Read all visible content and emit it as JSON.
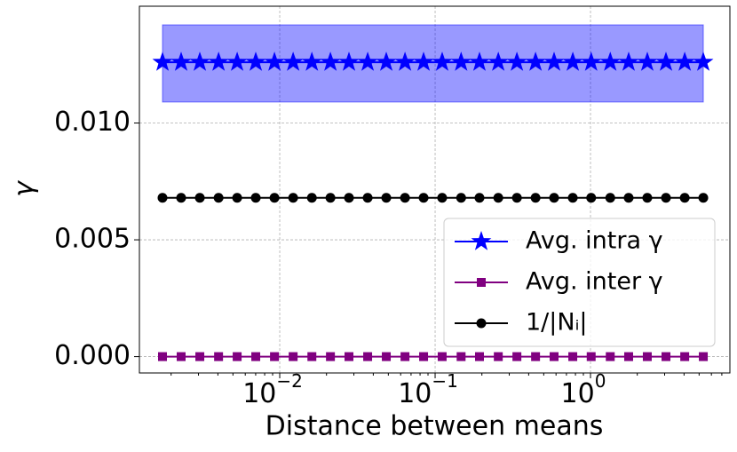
{
  "chart_data": {
    "type": "line",
    "xlabel": "Distance between means",
    "ylabel": "γ",
    "x": [
      0.00176,
      0.00232,
      0.00306,
      0.00404,
      0.00532,
      0.00701,
      0.00925,
      0.0122,
      0.0161,
      0.0212,
      0.0279,
      0.0368,
      0.0485,
      0.064,
      0.0843,
      0.111,
      0.147,
      0.193,
      0.255,
      0.336,
      0.443,
      0.583,
      0.769,
      1.01,
      1.34,
      1.76,
      2.32,
      3.06,
      4.04,
      5.32
    ],
    "series": [
      {
        "name": "Avg. intra γ",
        "color": "#0000ff",
        "marker": "star",
        "band_color": "#0000ff",
        "values": [
          0.0126,
          0.0126,
          0.0126,
          0.0126,
          0.0126,
          0.0126,
          0.0126,
          0.0126,
          0.0126,
          0.0126,
          0.0126,
          0.0126,
          0.0126,
          0.0126,
          0.0126,
          0.0126,
          0.0126,
          0.0126,
          0.0126,
          0.0126,
          0.0126,
          0.0126,
          0.0126,
          0.0126,
          0.0126,
          0.0126,
          0.0126,
          0.0126,
          0.0126,
          0.0126
        ],
        "lower": [
          0.0109,
          0.0109,
          0.0109,
          0.0109,
          0.0109,
          0.0109,
          0.0109,
          0.0109,
          0.0109,
          0.0109,
          0.0109,
          0.0109,
          0.0109,
          0.0109,
          0.0109,
          0.0109,
          0.0109,
          0.0109,
          0.0109,
          0.0109,
          0.0109,
          0.0109,
          0.0109,
          0.0109,
          0.0109,
          0.0109,
          0.0109,
          0.0109,
          0.0109,
          0.0109
        ],
        "upper": [
          0.0142,
          0.0142,
          0.0142,
          0.0142,
          0.0142,
          0.0142,
          0.0142,
          0.0142,
          0.0142,
          0.0142,
          0.0142,
          0.0142,
          0.0142,
          0.0142,
          0.0142,
          0.0142,
          0.0142,
          0.0142,
          0.0142,
          0.0142,
          0.0142,
          0.0142,
          0.0142,
          0.0142,
          0.0142,
          0.0142,
          0.0142,
          0.0142,
          0.0142,
          0.0142
        ]
      },
      {
        "name": "Avg. inter γ",
        "color": "#800080",
        "marker": "square",
        "values": [
          0,
          0,
          0,
          0,
          0,
          0,
          0,
          0,
          0,
          0,
          0,
          0,
          0,
          0,
          0,
          0,
          0,
          0,
          0,
          0,
          0,
          0,
          0,
          0,
          0,
          0,
          0,
          0,
          0,
          0
        ]
      },
      {
        "name": "1/|Nᵢ|",
        "color": "#000000",
        "marker": "circle",
        "values": [
          0.0068,
          0.0068,
          0.0068,
          0.0068,
          0.0068,
          0.0068,
          0.0068,
          0.0068,
          0.0068,
          0.0068,
          0.0068,
          0.0068,
          0.0068,
          0.0068,
          0.0068,
          0.0068,
          0.0068,
          0.0068,
          0.0068,
          0.0068,
          0.0068,
          0.0068,
          0.0068,
          0.0068,
          0.0068,
          0.0068,
          0.0068,
          0.0068,
          0.0068,
          0.0068
        ]
      }
    ],
    "xscale": "log",
    "xlim": [
      0.00125,
      7.89
    ],
    "xticks": [
      {
        "value": 0.01,
        "label": "10",
        "exponent": "−2"
      },
      {
        "value": 0.1,
        "label": "10",
        "exponent": "−1"
      },
      {
        "value": 1,
        "label": "10",
        "exponent": "0"
      }
    ],
    "ylim": [
      -0.0007,
      0.015
    ],
    "yticks": [
      {
        "value": 0,
        "label": "0.000"
      },
      {
        "value": 0.005,
        "label": "0.005"
      },
      {
        "value": 0.01,
        "label": "0.010"
      }
    ],
    "grid": true,
    "legend": "lower right"
  }
}
